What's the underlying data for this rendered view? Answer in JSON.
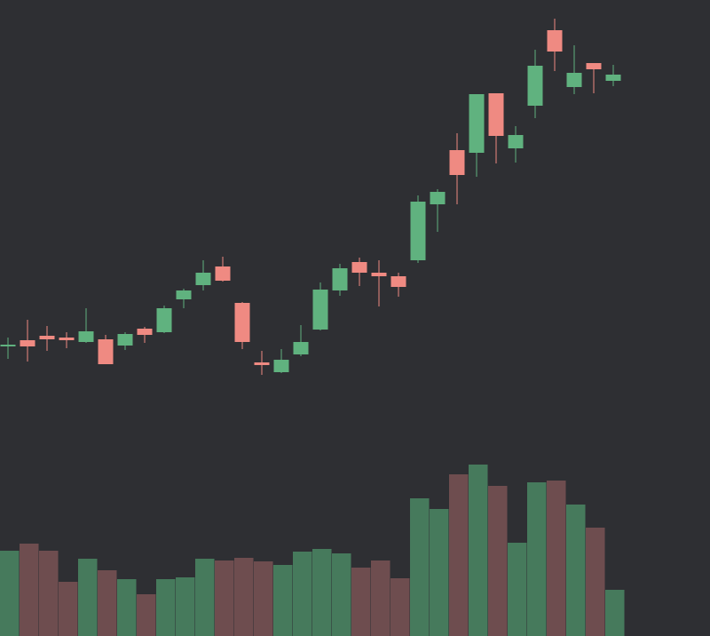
{
  "chart_data": {
    "type": "candlestick",
    "open": [
      110,
      117,
      122,
      120,
      115,
      118,
      111,
      130,
      126,
      163,
      179,
      200,
      159,
      92,
      81,
      101,
      129,
      173,
      205,
      193,
      189,
      207,
      270,
      331,
      328,
      395,
      333,
      381,
      466,
      402,
      429,
      409
    ],
    "high": [
      120,
      140,
      133,
      126,
      153,
      123,
      126,
      132,
      156,
      175,
      207,
      211,
      160,
      105,
      107,
      134,
      182,
      203,
      210,
      207,
      193,
      280,
      287,
      350,
      394,
      395,
      358,
      444,
      479,
      449,
      429,
      427
    ],
    "low": [
      96,
      93,
      105,
      108,
      114,
      90,
      106,
      114,
      125,
      153,
      173,
      183,
      107,
      78,
      80,
      99,
      128,
      167,
      178,
      155,
      166,
      204,
      239,
      270,
      301,
      316,
      317,
      367,
      420,
      394,
      395,
      403
    ],
    "close": [
      112,
      110,
      118,
      117,
      127,
      90,
      124,
      123,
      153,
      173,
      193,
      184,
      115,
      89,
      95,
      115,
      174,
      198,
      193,
      189,
      177,
      273,
      284,
      303,
      394,
      347,
      348,
      426,
      442,
      418,
      422,
      416
    ],
    "volume": [
      96,
      104,
      96,
      61,
      87,
      74,
      64,
      47,
      64,
      66,
      87,
      85,
      88,
      84,
      80,
      95,
      98,
      93,
      77,
      85,
      65,
      155,
      143,
      182,
      193,
      169,
      105,
      173,
      175,
      148,
      122,
      52
    ],
    "ylim": [
      0,
      500
    ],
    "volume_lim": [
      0,
      200
    ],
    "up_color": "#60b27f",
    "down_color": "#ef8a82",
    "volume_up_color": "#467a5c",
    "volume_down_color": "#6e4d4f",
    "background": "#2e2f33"
  }
}
